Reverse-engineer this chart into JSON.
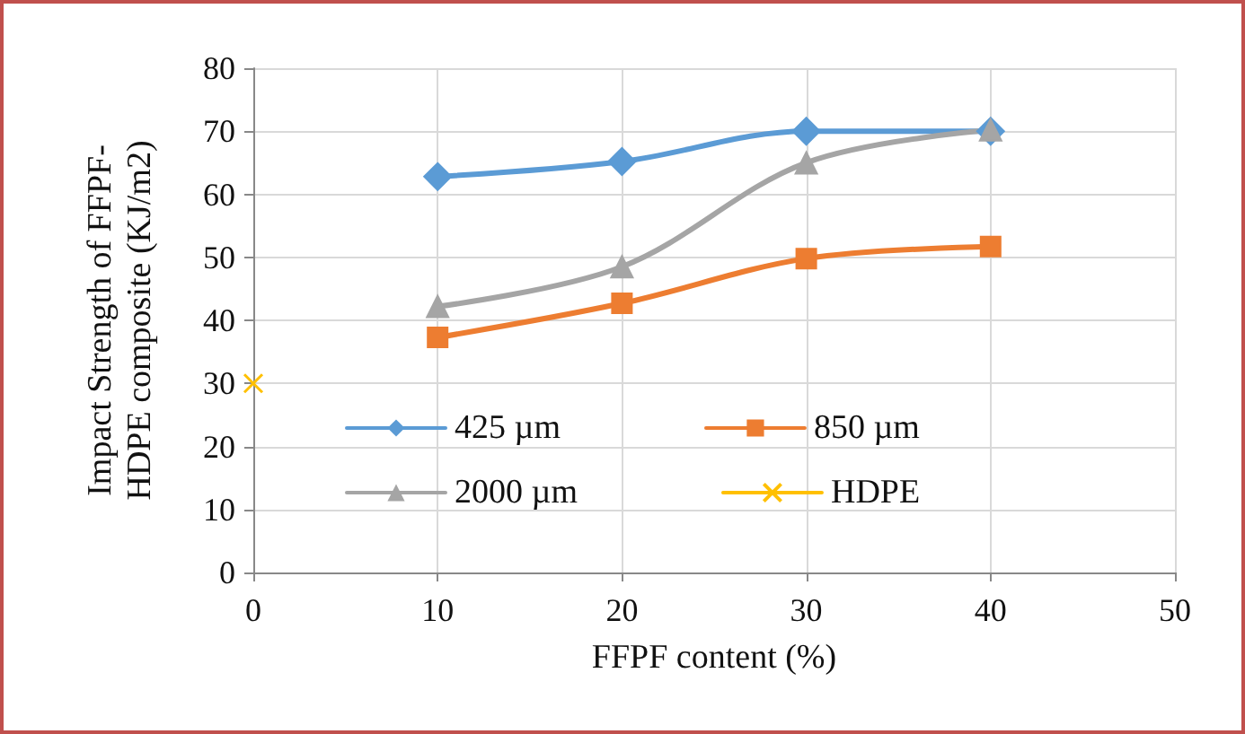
{
  "chart_data": {
    "type": "line",
    "xlabel": "FFPF content (%)",
    "ylabel": "Impact Strength of FFPF-\nHDPE composite (KJ/m2)",
    "x": [
      10,
      20,
      30,
      40
    ],
    "series": [
      {
        "name": "425 µm",
        "color": "#5b9bd5",
        "marker": "diamond",
        "values": [
          62.8,
          65.2,
          70,
          70
        ]
      },
      {
        "name": "850 µm",
        "color": "#ed7d31",
        "marker": "square",
        "values": [
          37.3,
          42.7,
          49.8,
          51.7
        ]
      },
      {
        "name": "2000 µm",
        "color": "#a5a5a5",
        "marker": "triangle",
        "values": [
          42.2,
          48.5,
          65,
          70.2
        ]
      },
      {
        "name": "HDPE",
        "color": "#ffc000",
        "marker": "cross",
        "x": [
          0
        ],
        "values": [
          30
        ]
      }
    ],
    "xlim": [
      0,
      50
    ],
    "xticks": [
      0,
      10,
      20,
      30,
      40,
      50
    ],
    "ylim": [
      0,
      80
    ],
    "yticks": [
      0,
      10,
      20,
      30,
      40,
      50,
      60,
      70,
      80
    ],
    "grid": true,
    "legend": "bottom",
    "line_style": "solid"
  }
}
